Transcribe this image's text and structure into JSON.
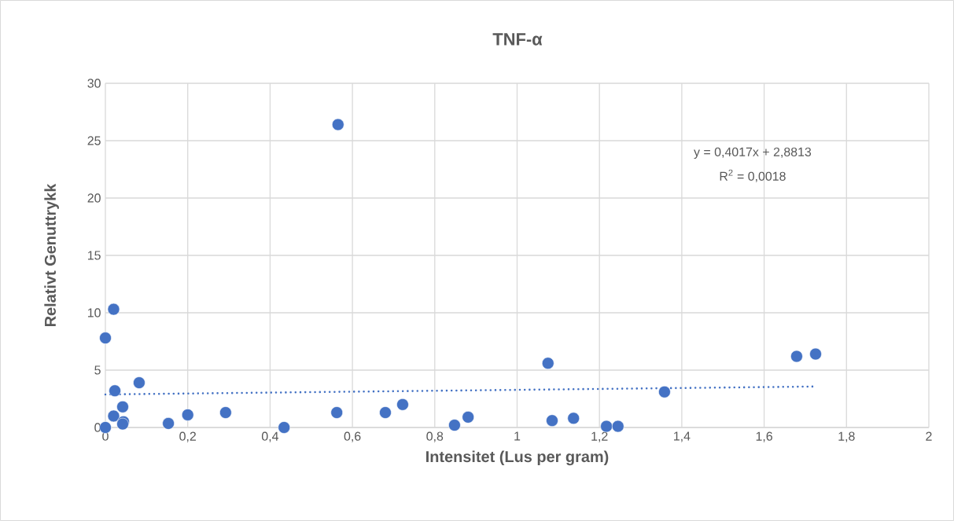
{
  "chart_data": {
    "type": "scatter",
    "title": "TNF-α",
    "xlabel": "Intensitet (Lus per gram)",
    "ylabel": "Relativt Genuttrykk",
    "xlim": [
      0,
      2
    ],
    "ylim": [
      0,
      30
    ],
    "xticks": [
      0,
      {
        "value": 0.2,
        "label": "0,2"
      },
      {
        "value": 0.4,
        "label": "0,4"
      },
      {
        "value": 0.6,
        "label": "0,6"
      },
      {
        "value": 0.8,
        "label": "0,8"
      },
      1,
      {
        "value": 1.2,
        "label": "1,2"
      },
      {
        "value": 1.4,
        "label": "1,4"
      },
      {
        "value": 1.6,
        "label": "1,6"
      },
      {
        "value": 1.8,
        "label": "1,8"
      },
      2
    ],
    "yticks": [
      0,
      5,
      10,
      15,
      20,
      25,
      30
    ],
    "grid": true,
    "marker": "circle",
    "annotations": [
      "y = 0,4017x + 2,8813",
      "R$^{2}$ = 0,0018"
    ],
    "series": [
      {
        "color": "#4472c4",
        "x": [
          0,
          0,
          0.02,
          0.023,
          0.02,
          0.042,
          0.044,
          0.042,
          0.082,
          0.153,
          0.2,
          0.292,
          0.434,
          0.562,
          0.565,
          0.68,
          0.722,
          0.848,
          0.881,
          1.075,
          1.085,
          1.137,
          1.217,
          1.245,
          1.358,
          1.679,
          1.725
        ],
        "values": [
          0,
          7.8,
          10.3,
          3.2,
          1.0,
          1.8,
          0.5,
          0.3,
          3.9,
          0.35,
          1.1,
          1.3,
          0,
          1.3,
          26.4,
          1.3,
          2.0,
          0.2,
          0.9,
          5.6,
          0.6,
          0.8,
          0.1,
          0.1,
          3.1,
          6.2,
          6.4
        ]
      },
      {
        "type": "line",
        "color": "#4472c4",
        "line_style": "dotted",
        "marker": "none",
        "x": [
          0,
          1.725
        ],
        "values": [
          2.88,
          3.57
        ]
      }
    ]
  }
}
